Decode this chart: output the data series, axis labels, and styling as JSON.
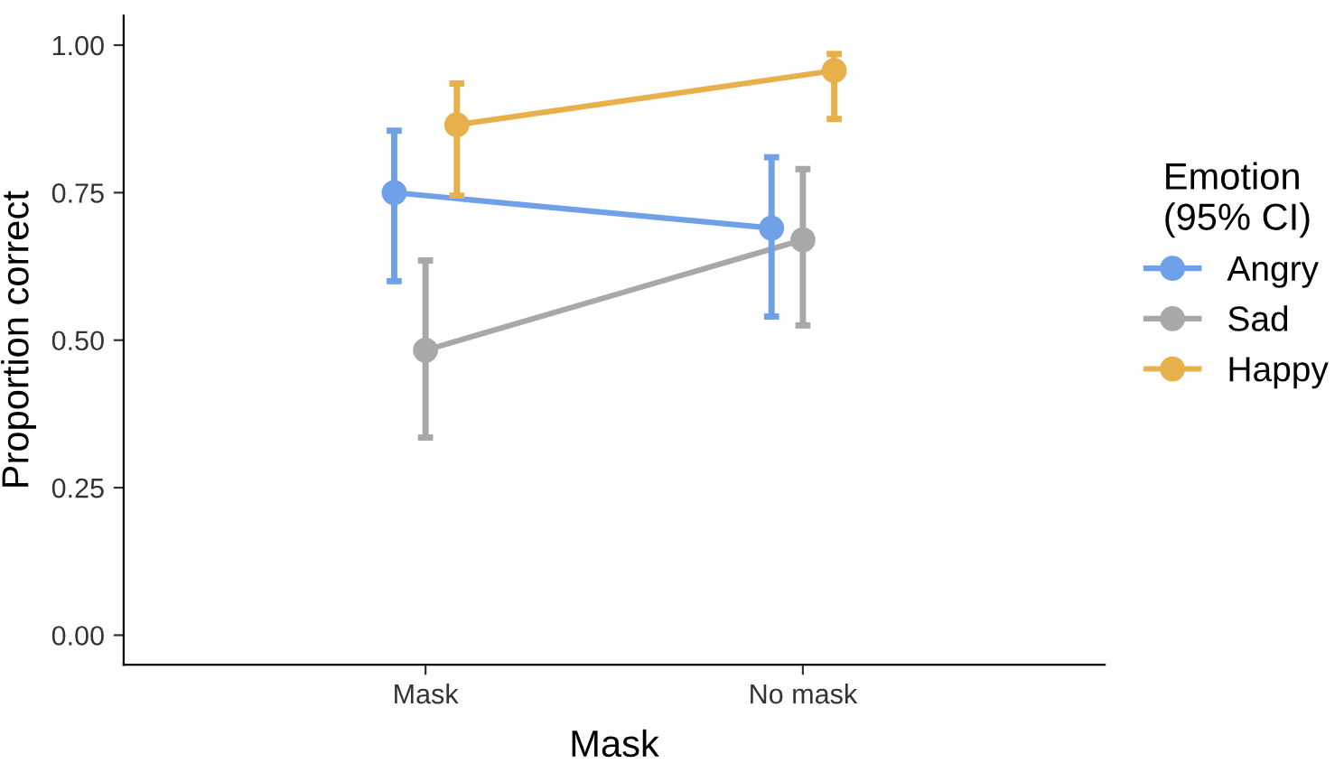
{
  "chart_data": {
    "type": "line",
    "xlabel": "Mask",
    "ylabel": "Proportion correct",
    "legend_title": "Emotion\n(95% CI)",
    "categories": [
      "Mask",
      "No mask"
    ],
    "series": [
      {
        "name": "Angry",
        "color": "#6fa0e8",
        "values": [
          0.75,
          0.69
        ],
        "errors": [
          [
            0.6,
            0.855
          ],
          [
            0.54,
            0.81
          ]
        ]
      },
      {
        "name": "Sad",
        "color": "#a8a8a8",
        "values": [
          0.483,
          0.67
        ],
        "errors": [
          [
            0.335,
            0.635
          ],
          [
            0.525,
            0.79
          ]
        ]
      },
      {
        "name": "Happy",
        "color": "#e8b04a",
        "values": [
          0.865,
          0.957
        ],
        "errors": [
          [
            0.745,
            0.935
          ],
          [
            0.875,
            0.985
          ]
        ]
      }
    ],
    "ylim": [
      -0.05,
      1.05
    ],
    "yticks": [
      {
        "value": 0,
        "label": "0.00"
      },
      {
        "value": 0.25,
        "label": "0.25"
      },
      {
        "value": 0.5,
        "label": "0.50"
      },
      {
        "value": 0.75,
        "label": "0.75"
      },
      {
        "value": 1,
        "label": "1.00"
      }
    ],
    "grid": false,
    "legend": "right",
    "marker": "circle",
    "line_style": "solid"
  }
}
